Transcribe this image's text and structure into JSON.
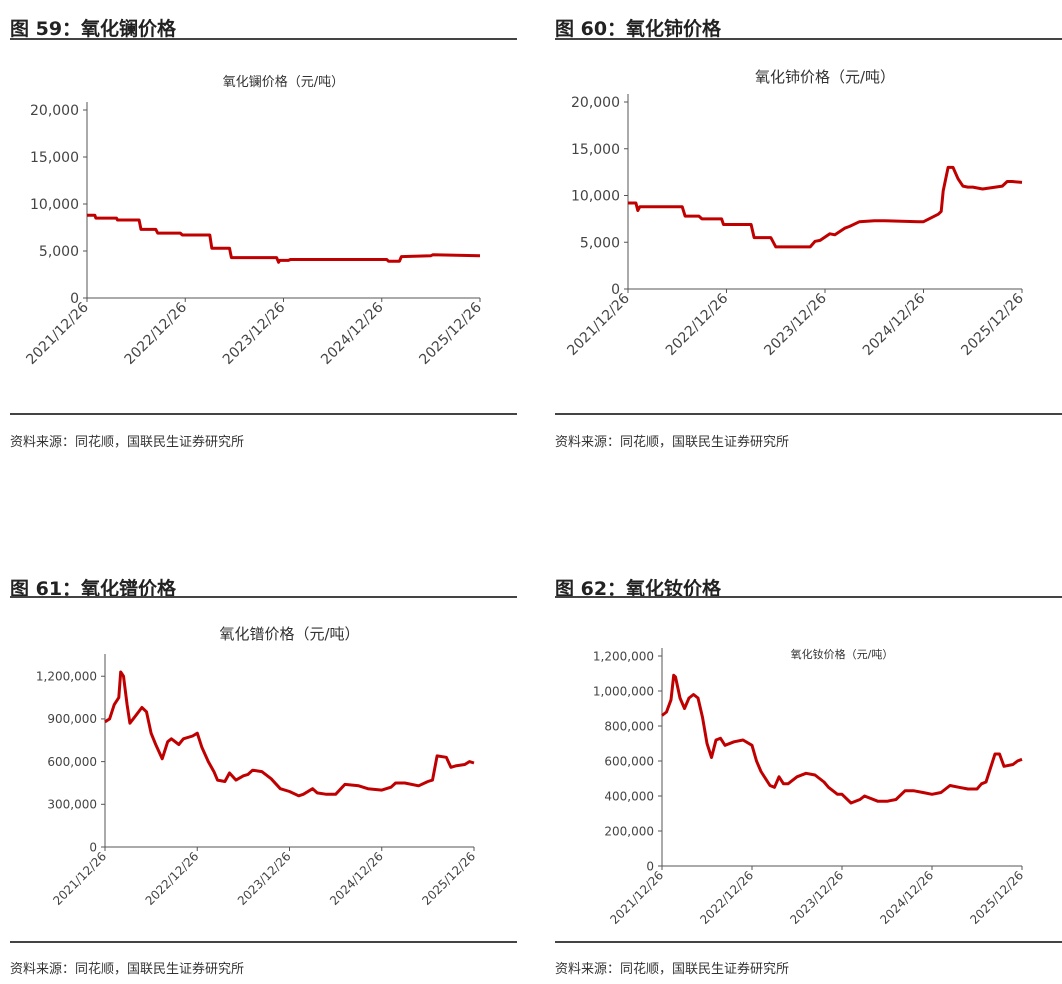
{
  "source_note": "资料来源：同花顺，国联民生证券研究所",
  "line_color": "#C00000",
  "chart_data": [
    {
      "fig_title": "图 59：氧化镧价格",
      "type": "line",
      "title": "氧化镧价格（元/吨）",
      "ylim": [
        0,
        20000
      ],
      "yticks": [
        0,
        5000,
        10000,
        15000,
        20000
      ],
      "ytick_labels": [
        "0",
        "5,000",
        "10,000",
        "15,000",
        "20,000"
      ],
      "xticks": [
        "2021/12/26",
        "2022/12/26",
        "2023/12/26",
        "2024/12/26",
        "2025/12/26"
      ],
      "x_range": [
        0,
        4
      ],
      "series": [
        {
          "x": [
            0.0,
            0.08,
            0.09,
            0.3,
            0.31,
            0.53,
            0.55,
            0.7,
            0.72,
            0.95,
            0.97,
            1.25,
            1.27,
            1.45,
            1.47,
            1.93,
            1.95,
            1.96,
            2.05,
            2.07,
            3.05,
            3.07,
            3.18,
            3.2,
            3.5,
            3.52,
            4.0
          ],
          "y": [
            8800,
            8800,
            8500,
            8500,
            8300,
            8300,
            7300,
            7300,
            6900,
            6900,
            6700,
            6700,
            5300,
            5300,
            4300,
            4300,
            3800,
            4000,
            4000,
            4100,
            4100,
            3900,
            3900,
            4400,
            4500,
            4600,
            4500
          ]
        }
      ]
    },
    {
      "fig_title": "图 60：氧化铈价格",
      "type": "line",
      "title": "氧化铈价格（元/吨）",
      "ylim": [
        0,
        20000
      ],
      "yticks": [
        0,
        5000,
        10000,
        15000,
        20000
      ],
      "ytick_labels": [
        "0",
        "5,000",
        "10,000",
        "15,000",
        "20,000"
      ],
      "xticks": [
        "2021/12/26",
        "2022/12/26",
        "2023/12/26",
        "2024/12/26",
        "2025/12/26"
      ],
      "x_range": [
        0,
        4
      ],
      "series": [
        {
          "x": [
            0.0,
            0.08,
            0.1,
            0.12,
            0.55,
            0.58,
            0.72,
            0.75,
            0.95,
            0.97,
            1.25,
            1.28,
            1.45,
            1.5,
            1.85,
            1.9,
            1.95,
            2.05,
            2.1,
            2.2,
            2.25,
            2.35,
            2.5,
            2.6,
            2.95,
            3.0,
            3.15,
            3.18,
            3.2,
            3.25,
            3.3,
            3.35,
            3.4,
            3.45,
            3.5,
            3.6,
            3.8,
            3.85,
            3.9,
            4.0
          ],
          "y": [
            9200,
            9200,
            8400,
            8800,
            8800,
            7800,
            7800,
            7500,
            7500,
            6900,
            6900,
            5500,
            5500,
            4500,
            4500,
            5100,
            5200,
            5900,
            5800,
            6500,
            6700,
            7200,
            7300,
            7300,
            7200,
            7200,
            8000,
            8300,
            10500,
            13000,
            13000,
            11800,
            11000,
            10900,
            10900,
            10700,
            11000,
            11500,
            11500,
            11400
          ]
        }
      ]
    },
    {
      "fig_title": "图 61：氧化镨价格",
      "type": "line",
      "title": "氧化镨价格（元/吨）",
      "ylim": [
        0,
        1300000
      ],
      "yticks": [
        0,
        300000,
        600000,
        900000,
        1200000
      ],
      "ytick_labels": [
        "0",
        "300,000",
        "600,000",
        "900,000",
        "1,200,000"
      ],
      "xticks": [
        "2021/12/26",
        "2022/12/26",
        "2023/12/26",
        "2024/12/26",
        "2025/12/26"
      ],
      "x_range": [
        0,
        4
      ],
      "series": [
        {
          "x": [
            0.0,
            0.05,
            0.1,
            0.15,
            0.17,
            0.2,
            0.24,
            0.27,
            0.33,
            0.4,
            0.45,
            0.5,
            0.55,
            0.62,
            0.68,
            0.72,
            0.8,
            0.85,
            0.95,
            1.0,
            1.05,
            1.12,
            1.18,
            1.22,
            1.3,
            1.35,
            1.42,
            1.5,
            1.55,
            1.6,
            1.7,
            1.8,
            1.9,
            2.0,
            2.1,
            2.15,
            2.25,
            2.3,
            2.4,
            2.5,
            2.6,
            2.75,
            2.85,
            3.0,
            3.1,
            3.15,
            3.25,
            3.4,
            3.5,
            3.55,
            3.6,
            3.7,
            3.75,
            3.8,
            3.9,
            3.95,
            4.0
          ],
          "y": [
            880000,
            900000,
            1000000,
            1050000,
            1230000,
            1200000,
            1000000,
            870000,
            920000,
            980000,
            950000,
            800000,
            720000,
            620000,
            740000,
            760000,
            720000,
            760000,
            780000,
            800000,
            700000,
            600000,
            530000,
            470000,
            460000,
            520000,
            470000,
            500000,
            510000,
            540000,
            530000,
            480000,
            410000,
            390000,
            360000,
            370000,
            410000,
            380000,
            370000,
            370000,
            440000,
            430000,
            410000,
            400000,
            420000,
            450000,
            450000,
            430000,
            460000,
            470000,
            640000,
            630000,
            560000,
            570000,
            580000,
            600000,
            590000
          ]
        }
      ]
    },
    {
      "fig_title": "图 62：氧化钕价格",
      "type": "line",
      "title": "氧化钕价格（元/吨）",
      "ylim": [
        0,
        1200000
      ],
      "yticks": [
        0,
        200000,
        400000,
        600000,
        800000,
        1000000,
        1200000
      ],
      "ytick_labels": [
        "0",
        "200,000",
        "400,000",
        "600,000",
        "800,000",
        "1,000,000",
        "1,200,000"
      ],
      "xticks": [
        "2021/12/26",
        "2022/12/26",
        "2023/12/26",
        "2024/12/26",
        "2025/12/26"
      ],
      "x_range": [
        0,
        4
      ],
      "series": [
        {
          "x": [
            0.0,
            0.05,
            0.1,
            0.13,
            0.15,
            0.2,
            0.25,
            0.3,
            0.35,
            0.4,
            0.45,
            0.5,
            0.55,
            0.6,
            0.65,
            0.7,
            0.8,
            0.9,
            1.0,
            1.05,
            1.1,
            1.2,
            1.25,
            1.3,
            1.35,
            1.4,
            1.5,
            1.6,
            1.7,
            1.8,
            1.85,
            1.95,
            2.0,
            2.1,
            2.2,
            2.25,
            2.4,
            2.5,
            2.6,
            2.7,
            2.8,
            2.9,
            3.0,
            3.1,
            3.2,
            3.3,
            3.4,
            3.5,
            3.55,
            3.6,
            3.7,
            3.75,
            3.8,
            3.9,
            3.95,
            4.0
          ],
          "y": [
            860000,
            880000,
            950000,
            1090000,
            1080000,
            960000,
            900000,
            960000,
            980000,
            960000,
            850000,
            700000,
            620000,
            720000,
            730000,
            690000,
            710000,
            720000,
            690000,
            600000,
            540000,
            460000,
            450000,
            510000,
            470000,
            470000,
            510000,
            530000,
            520000,
            480000,
            450000,
            410000,
            410000,
            360000,
            380000,
            400000,
            370000,
            370000,
            380000,
            430000,
            430000,
            420000,
            410000,
            420000,
            460000,
            450000,
            440000,
            440000,
            470000,
            480000,
            640000,
            640000,
            570000,
            580000,
            600000,
            610000
          ]
        }
      ]
    }
  ]
}
